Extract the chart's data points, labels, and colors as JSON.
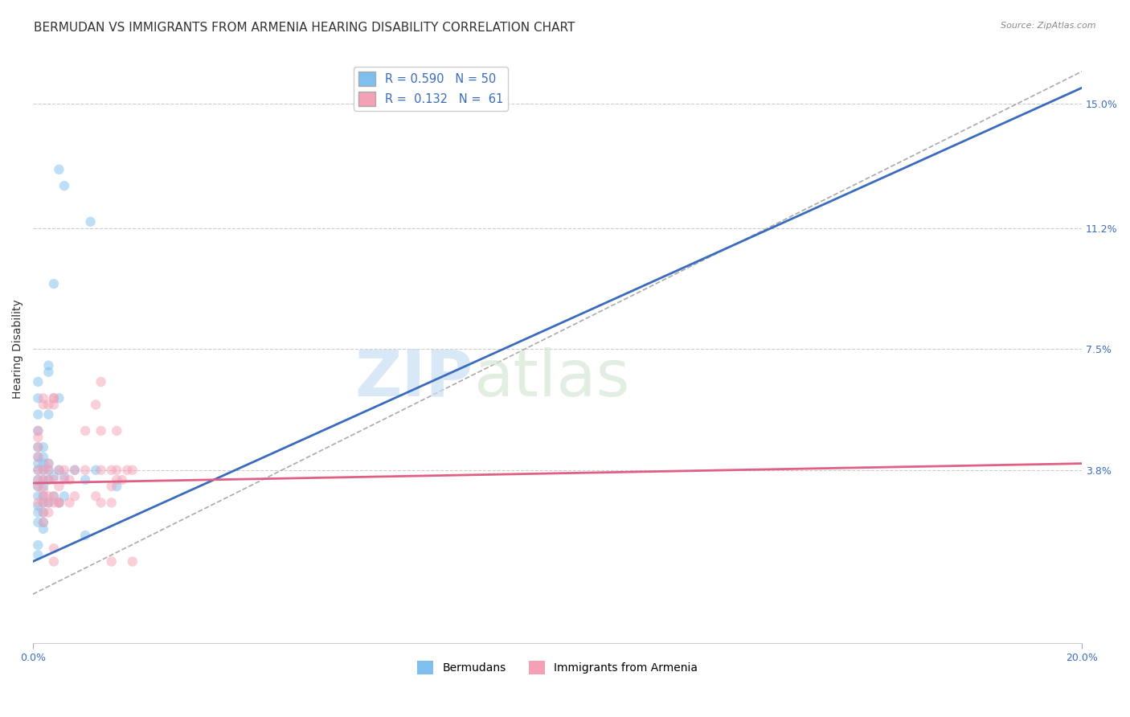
{
  "title": "BERMUDAN VS IMMIGRANTS FROM ARMENIA HEARING DISABILITY CORRELATION CHART",
  "source": "Source: ZipAtlas.com",
  "ylabel": "Hearing Disability",
  "ytick_labels": [
    "3.8%",
    "7.5%",
    "11.2%",
    "15.0%"
  ],
  "ytick_values": [
    0.038,
    0.075,
    0.112,
    0.15
  ],
  "xlim": [
    0.0,
    0.2
  ],
  "ylim": [
    -0.015,
    0.165
  ],
  "legend_line1": "R = 0.590   N = 50",
  "legend_line2": "R =  0.132   N =  61",
  "blue_scatter": [
    [
      0.001,
      0.038
    ],
    [
      0.001,
      0.035
    ],
    [
      0.001,
      0.04
    ],
    [
      0.001,
      0.042
    ],
    [
      0.001,
      0.045
    ],
    [
      0.001,
      0.033
    ],
    [
      0.001,
      0.03
    ],
    [
      0.001,
      0.027
    ],
    [
      0.001,
      0.025
    ],
    [
      0.001,
      0.022
    ],
    [
      0.001,
      0.05
    ],
    [
      0.001,
      0.055
    ],
    [
      0.001,
      0.06
    ],
    [
      0.001,
      0.065
    ],
    [
      0.002,
      0.038
    ],
    [
      0.002,
      0.035
    ],
    [
      0.002,
      0.04
    ],
    [
      0.002,
      0.042
    ],
    [
      0.002,
      0.045
    ],
    [
      0.002,
      0.033
    ],
    [
      0.002,
      0.03
    ],
    [
      0.002,
      0.028
    ],
    [
      0.002,
      0.025
    ],
    [
      0.002,
      0.022
    ],
    [
      0.002,
      0.02
    ],
    [
      0.003,
      0.038
    ],
    [
      0.003,
      0.035
    ],
    [
      0.003,
      0.055
    ],
    [
      0.003,
      0.07
    ],
    [
      0.003,
      0.068
    ],
    [
      0.003,
      0.04
    ],
    [
      0.003,
      0.028
    ],
    [
      0.004,
      0.095
    ],
    [
      0.004,
      0.036
    ],
    [
      0.004,
      0.03
    ],
    [
      0.005,
      0.13
    ],
    [
      0.005,
      0.06
    ],
    [
      0.005,
      0.038
    ],
    [
      0.005,
      0.028
    ],
    [
      0.006,
      0.125
    ],
    [
      0.006,
      0.036
    ],
    [
      0.006,
      0.03
    ],
    [
      0.008,
      0.038
    ],
    [
      0.01,
      0.035
    ],
    [
      0.01,
      0.018
    ],
    [
      0.012,
      0.038
    ],
    [
      0.016,
      0.033
    ],
    [
      0.011,
      0.114
    ],
    [
      0.001,
      0.012
    ],
    [
      0.001,
      0.015
    ]
  ],
  "pink_scatter": [
    [
      0.001,
      0.038
    ],
    [
      0.001,
      0.042
    ],
    [
      0.001,
      0.045
    ],
    [
      0.001,
      0.035
    ],
    [
      0.001,
      0.033
    ],
    [
      0.001,
      0.048
    ],
    [
      0.001,
      0.05
    ],
    [
      0.001,
      0.028
    ],
    [
      0.002,
      0.06
    ],
    [
      0.002,
      0.058
    ],
    [
      0.002,
      0.038
    ],
    [
      0.002,
      0.035
    ],
    [
      0.002,
      0.032
    ],
    [
      0.002,
      0.03
    ],
    [
      0.002,
      0.028
    ],
    [
      0.002,
      0.025
    ],
    [
      0.002,
      0.022
    ],
    [
      0.003,
      0.04
    ],
    [
      0.003,
      0.038
    ],
    [
      0.003,
      0.035
    ],
    [
      0.003,
      0.03
    ],
    [
      0.003,
      0.028
    ],
    [
      0.003,
      0.025
    ],
    [
      0.003,
      0.058
    ],
    [
      0.004,
      0.06
    ],
    [
      0.004,
      0.058
    ],
    [
      0.004,
      0.035
    ],
    [
      0.004,
      0.03
    ],
    [
      0.004,
      0.028
    ],
    [
      0.004,
      0.01
    ],
    [
      0.004,
      0.014
    ],
    [
      0.004,
      0.06
    ],
    [
      0.005,
      0.038
    ],
    [
      0.005,
      0.033
    ],
    [
      0.005,
      0.028
    ],
    [
      0.005,
      0.028
    ],
    [
      0.006,
      0.038
    ],
    [
      0.006,
      0.035
    ],
    [
      0.007,
      0.035
    ],
    [
      0.007,
      0.028
    ],
    [
      0.008,
      0.038
    ],
    [
      0.008,
      0.03
    ],
    [
      0.01,
      0.038
    ],
    [
      0.01,
      0.05
    ],
    [
      0.012,
      0.058
    ],
    [
      0.012,
      0.03
    ],
    [
      0.013,
      0.028
    ],
    [
      0.013,
      0.038
    ],
    [
      0.015,
      0.038
    ],
    [
      0.015,
      0.033
    ],
    [
      0.015,
      0.028
    ],
    [
      0.015,
      0.01
    ],
    [
      0.017,
      0.035
    ],
    [
      0.013,
      0.065
    ],
    [
      0.013,
      0.05
    ],
    [
      0.016,
      0.05
    ],
    [
      0.016,
      0.038
    ],
    [
      0.016,
      0.035
    ],
    [
      0.018,
      0.038
    ],
    [
      0.019,
      0.038
    ],
    [
      0.019,
      0.01
    ]
  ],
  "blue_line_x": [
    0.0,
    0.2
  ],
  "blue_line_y": [
    0.01,
    0.155
  ],
  "pink_line_x": [
    0.0,
    0.2
  ],
  "pink_line_y": [
    0.034,
    0.04
  ],
  "dash_line_x": [
    0.0,
    0.2
  ],
  "dash_line_y": [
    0.0,
    0.16
  ],
  "blue_color": "#7fbfef",
  "pink_color": "#f4a0b5",
  "blue_line_color": "#3a6bbd",
  "pink_line_color": "#e05f85",
  "dash_color": "#aaaaaa",
  "grid_color": "#cccccc",
  "background_color": "#ffffff",
  "watermark_zip": "ZIP",
  "watermark_atlas": "atlas",
  "title_fontsize": 11,
  "axis_label_fontsize": 10,
  "tick_fontsize": 9,
  "scatter_size": 80,
  "scatter_alpha": 0.5
}
